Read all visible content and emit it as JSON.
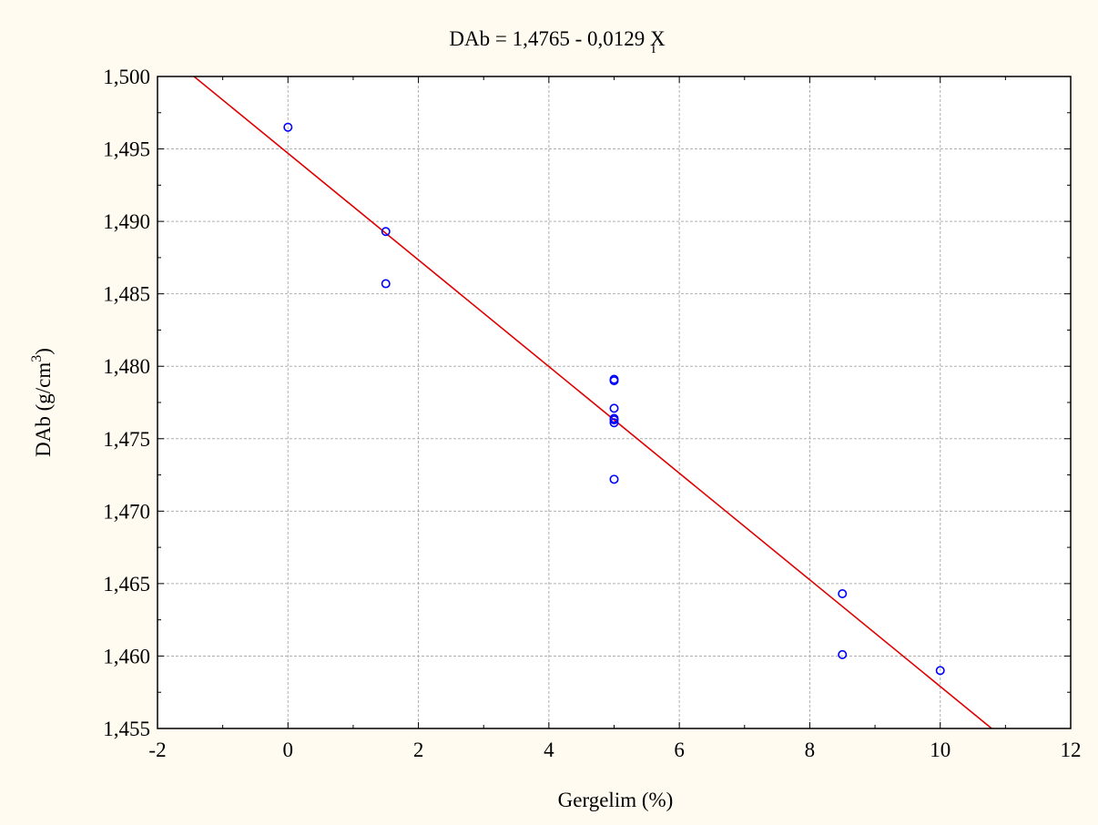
{
  "chart_data": {
    "type": "scatter",
    "title": "DAb = 1,4765 - 0,0129 X",
    "title_subscript": "i",
    "xlabel": "Gergelim (%)",
    "ylabel": "DAb (g/cm",
    "ylabel_sup": "3",
    "ylabel_close": ")",
    "xlim": [
      -2,
      12
    ],
    "ylim": [
      1.455,
      1.5
    ],
    "x_ticks": [
      -2,
      0,
      2,
      4,
      6,
      8,
      10,
      12
    ],
    "y_ticks": [
      1.455,
      1.46,
      1.465,
      1.47,
      1.475,
      1.48,
      1.485,
      1.49,
      1.495,
      1.5
    ],
    "x_tick_labels": [
      "-2",
      "0",
      "2",
      "4",
      "6",
      "8",
      "10",
      "12"
    ],
    "y_tick_labels": [
      "1,455",
      "1,460",
      "1,465",
      "1,470",
      "1,475",
      "1,480",
      "1,485",
      "1,490",
      "1,495",
      "1,500"
    ],
    "grid": true,
    "points": [
      {
        "x": 0,
        "y": 1.4965
      },
      {
        "x": 1.5,
        "y": 1.4893
      },
      {
        "x": 1.5,
        "y": 1.4857
      },
      {
        "x": 5,
        "y": 1.4791
      },
      {
        "x": 5,
        "y": 1.479
      },
      {
        "x": 5,
        "y": 1.4771
      },
      {
        "x": 5,
        "y": 1.4764
      },
      {
        "x": 5,
        "y": 1.4763
      },
      {
        "x": 5,
        "y": 1.4761
      },
      {
        "x": 5,
        "y": 1.4722
      },
      {
        "x": 8.5,
        "y": 1.4643
      },
      {
        "x": 8.5,
        "y": 1.4601
      },
      {
        "x": 10,
        "y": 1.459
      }
    ],
    "fit_line": {
      "intercept": 1.4947,
      "slope": -0.00368
    },
    "colors": {
      "points": "#0000ff",
      "line": "#e00000",
      "grid": "#b0b0b0",
      "background": "#fffbf0",
      "plot_background": "#ffffff"
    }
  }
}
